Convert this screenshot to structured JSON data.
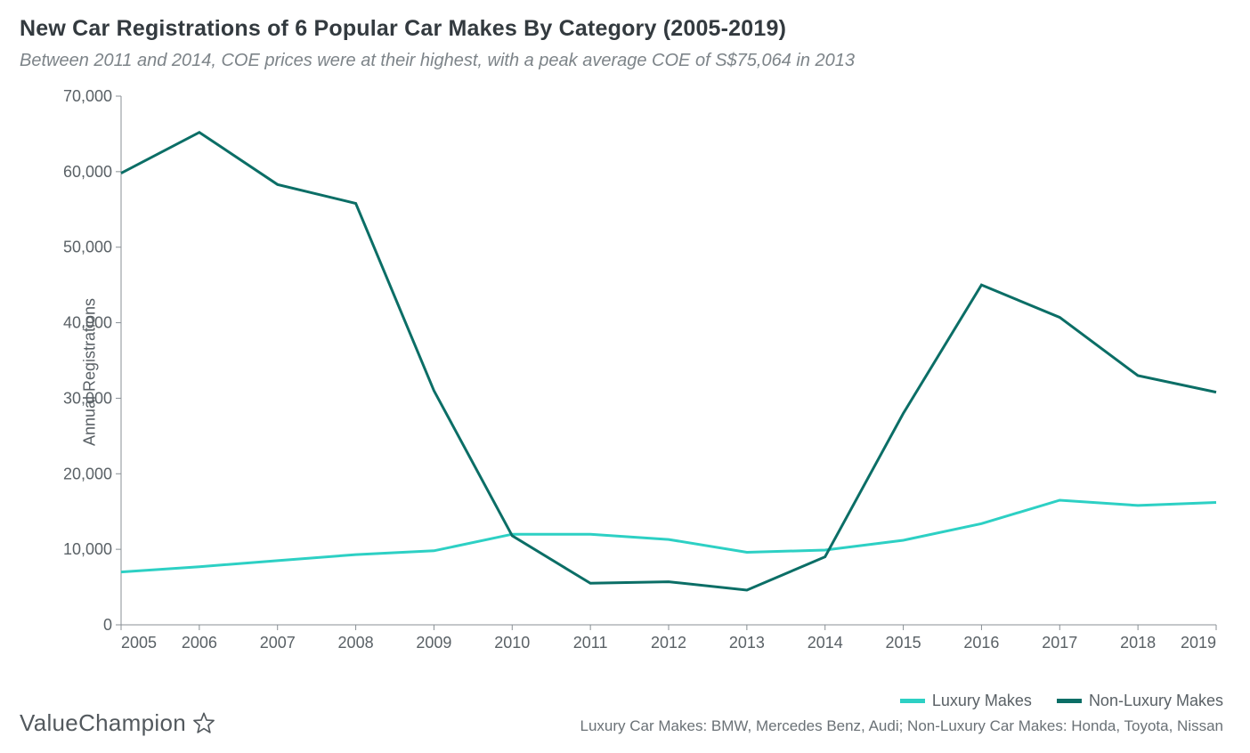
{
  "title": "New Car Registrations of 6 Popular Car Makes By Category (2005-2019)",
  "subtitle": "Between 2011 and 2014, COE prices were at their highest, with a peak average COE of S$75,064 in 2013",
  "footnote": "Luxury Car Makes: BMW, Mercedes Benz, Audi; Non-Luxury Car Makes: Honda, Toyota, Nissan",
  "brand": "ValueChampion",
  "chart": {
    "type": "line",
    "y_label": "Annual Registrations",
    "x_values": [
      2005,
      2006,
      2007,
      2008,
      2009,
      2010,
      2011,
      2012,
      2013,
      2014,
      2015,
      2016,
      2017,
      2018,
      2019
    ],
    "ylim": [
      0,
      70000
    ],
    "ytick_step": 10000,
    "y_tick_labels": [
      "0",
      "10,000",
      "20,000",
      "30,000",
      "40,000",
      "50,000",
      "60,000",
      "70,000"
    ],
    "background_color": "#ffffff",
    "axis_color": "#888f94",
    "tick_font_size": 18,
    "title_font_size": 25,
    "subtitle_font_size": 20,
    "line_width": 3,
    "series": [
      {
        "name": "Luxury Makes",
        "color": "#2dd0c4",
        "values": [
          7000,
          7700,
          8500,
          9300,
          9800,
          12000,
          12000,
          11300,
          9600,
          9900,
          11200,
          13400,
          16500,
          15800,
          16200
        ]
      },
      {
        "name": "Non-Luxury Makes",
        "color": "#0b6e66",
        "values": [
          59800,
          65200,
          58300,
          55800,
          31000,
          11800,
          5500,
          5700,
          4600,
          9000,
          28000,
          45000,
          40700,
          33000,
          30800
        ]
      }
    ]
  }
}
